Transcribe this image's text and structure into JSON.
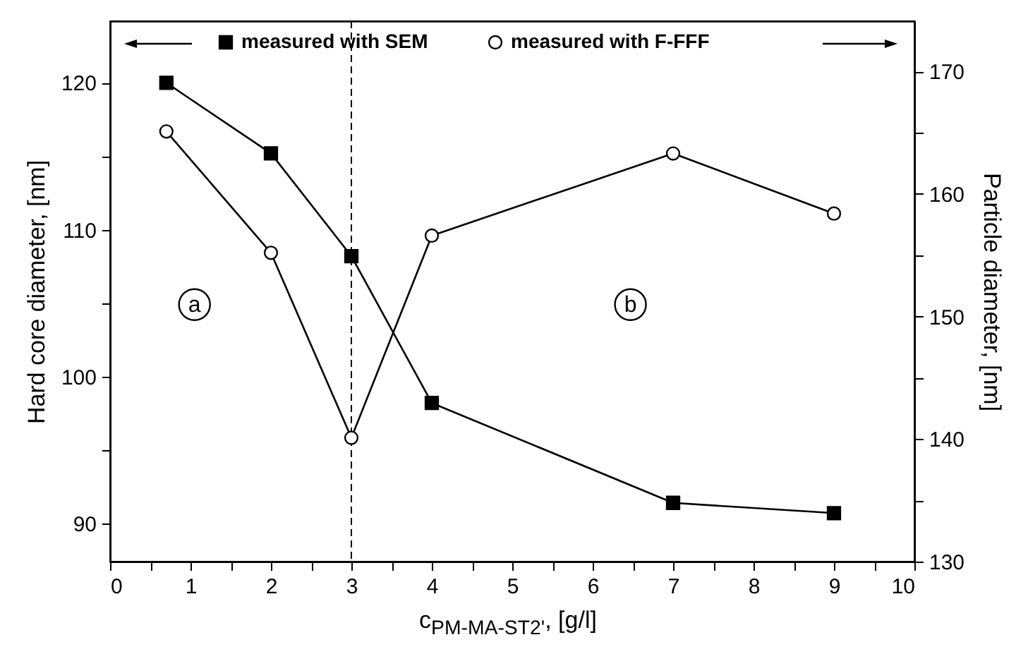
{
  "chart_data": {
    "type": "line",
    "xlabel": "c$_{PM-MA-ST2'}$, [g/l]",
    "ylabel": "Hard core diameter, [nm]",
    "y2label": "Particle diameter, [nm]",
    "xlim": [
      0,
      10
    ],
    "xticks": [
      0,
      {
        "value": 0.5,
        "label": null
      },
      1,
      {
        "value": 1.5,
        "label": null
      },
      2,
      {
        "value": 2.5,
        "label": null
      },
      3,
      {
        "value": 3.5,
        "label": null
      },
      4,
      {
        "value": 4.5,
        "label": null
      },
      5,
      {
        "value": 5.5,
        "label": null
      },
      6,
      {
        "value": 6.5,
        "label": null
      },
      7,
      {
        "value": 7.5,
        "label": null
      },
      8,
      {
        "value": 8.5,
        "label": null
      },
      9,
      {
        "value": 9.5,
        "label": null
      },
      10
    ],
    "ylim": [
      87.4,
      124.2
    ],
    "yticks": [
      90,
      {
        "value": 95,
        "label": null
      },
      100,
      {
        "value": 105,
        "label": null
      },
      110,
      {
        "value": 115,
        "label": null
      },
      120
    ],
    "y2lim": [
      130,
      174.1
    ],
    "y2ticks": [
      130,
      {
        "value": 135,
        "label": null
      },
      140,
      {
        "value": 145,
        "label": null
      },
      150,
      {
        "value": 155,
        "label": null
      },
      160,
      {
        "value": 165,
        "label": null
      },
      170
    ],
    "legend": "top",
    "grid": false,
    "series": [
      {
        "name": "measured with SEM",
        "color": "#000000",
        "marker": "square",
        "x": [
          0.7,
          2,
          3,
          4,
          7,
          9
        ],
        "values": [
          120,
          115.2,
          108.2,
          98.2,
          91.4,
          90.7
        ]
      },
      {
        "name": "measured with F-FFF",
        "color": "#000000",
        "marker": "circle",
        "axis": "y2",
        "x": [
          0.7,
          2,
          3,
          4,
          7,
          9
        ],
        "values": [
          165.1,
          155.2,
          140.1,
          156.6,
          163.3,
          158.4
        ]
      }
    ],
    "ref_lines": [
      {
        "axis": "x",
        "value": 3,
        "line_style": "dashed",
        "color": "#000000"
      }
    ],
    "annotations": [
      {
        "text": "a",
        "x": 1.05,
        "y": 104.9
      },
      {
        "text": "b",
        "x": 6.47,
        "y": 104.9
      }
    ]
  }
}
